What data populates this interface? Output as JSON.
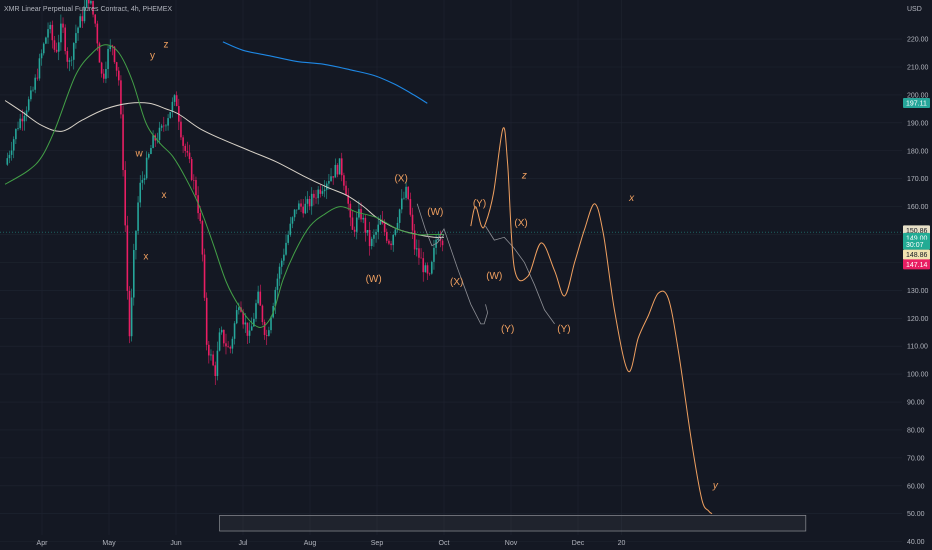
{
  "title": "XMR Linear Perpetual Futures Contract, 4h, PHEMEX",
  "currency": "USD",
  "chart_data": {
    "type": "line",
    "ylim": [
      37,
      234
    ],
    "y_ticks": [
      40,
      50,
      60,
      70,
      80,
      90,
      100,
      110,
      120,
      130,
      140,
      150,
      160,
      170,
      180,
      190,
      200,
      210,
      220
    ],
    "y_tick_labels": [
      "40.00",
      "50.00",
      "60.00",
      "70.00",
      "80.00",
      "90.00",
      "100.00",
      "110.00",
      "120.00",
      "130.00",
      "140.00",
      "150.00",
      "160.00",
      "170.00",
      "180.00",
      "190.00",
      "200.00",
      "210.00",
      "220.00"
    ],
    "x_ticks": [
      {
        "t": 0.0,
        "label": "Apr"
      },
      {
        "t": 1.0,
        "label": "May"
      },
      {
        "t": 2.0,
        "label": "Jun"
      },
      {
        "t": 3.0,
        "label": "Jul"
      },
      {
        "t": 4.0,
        "label": "Aug"
      },
      {
        "t": 5.0,
        "label": "Sep"
      },
      {
        "t": 6.0,
        "label": "Oct"
      },
      {
        "t": 7.0,
        "label": "Nov"
      },
      {
        "t": 8.0,
        "label": "Dec"
      },
      {
        "t": 8.65,
        "label": "20"
      }
    ],
    "price_badges": [
      {
        "label": "197.11",
        "value": 197.11,
        "color": "#26a69a"
      },
      {
        "label": "150.86",
        "value": 151.5,
        "color": "#e8e0c8"
      },
      {
        "label": "149.00",
        "value": 148.8,
        "color": "#22ab94"
      },
      {
        "label": "30:07",
        "value": 146.4,
        "color": "#22ab94"
      },
      {
        "label": "148.86",
        "value": 142.8,
        "color": "#f0e2b0"
      },
      {
        "label": "147.14",
        "value": 139.3,
        "color": "#e91e63"
      }
    ],
    "current_price": 150.86,
    "price_series": [
      [
        -0.55,
        175
      ],
      [
        -0.35,
        190
      ],
      [
        -0.15,
        200
      ],
      [
        0.0,
        215
      ],
      [
        0.1,
        225
      ],
      [
        0.2,
        215
      ],
      [
        0.3,
        225
      ],
      [
        0.4,
        210
      ],
      [
        0.5,
        222
      ],
      [
        0.6,
        228
      ],
      [
        0.7,
        235
      ],
      [
        0.8,
        225
      ],
      [
        0.9,
        205
      ],
      [
        0.98,
        215
      ],
      [
        1.05,
        218
      ],
      [
        1.15,
        205
      ],
      [
        1.22,
        170
      ],
      [
        1.27,
        132
      ],
      [
        1.31,
        112
      ],
      [
        1.37,
        142
      ],
      [
        1.45,
        166
      ],
      [
        1.55,
        174
      ],
      [
        1.65,
        183
      ],
      [
        1.78,
        187
      ],
      [
        1.9,
        194
      ],
      [
        2.0,
        199
      ],
      [
        2.1,
        183
      ],
      [
        2.2,
        175
      ],
      [
        2.3,
        165
      ],
      [
        2.38,
        150
      ],
      [
        2.45,
        112
      ],
      [
        2.52,
        106
      ],
      [
        2.58,
        100
      ],
      [
        2.66,
        115
      ],
      [
        2.8,
        108
      ],
      [
        2.95,
        128
      ],
      [
        3.0,
        120
      ],
      [
        3.1,
        113
      ],
      [
        3.22,
        128
      ],
      [
        3.35,
        113
      ],
      [
        3.5,
        133
      ],
      [
        3.65,
        148
      ],
      [
        3.8,
        160
      ],
      [
        3.95,
        160
      ],
      [
        4.1,
        165
      ],
      [
        4.3,
        171
      ],
      [
        4.45,
        175
      ],
      [
        4.55,
        165
      ],
      [
        4.62,
        150
      ],
      [
        4.75,
        158
      ],
      [
        4.9,
        146
      ],
      [
        5.05,
        154
      ],
      [
        5.2,
        147
      ],
      [
        5.35,
        160
      ],
      [
        5.45,
        166
      ],
      [
        5.55,
        146
      ],
      [
        5.65,
        141
      ],
      [
        5.78,
        133
      ],
      [
        5.9,
        151
      ],
      [
        6.0,
        148
      ]
    ],
    "sma_green": [
      [
        -0.55,
        168
      ],
      [
        -0.2,
        173
      ],
      [
        0.0,
        178
      ],
      [
        0.2,
        188
      ],
      [
        0.5,
        207
      ],
      [
        0.75,
        215
      ],
      [
        0.95,
        218
      ],
      [
        1.15,
        215
      ],
      [
        1.35,
        205
      ],
      [
        1.55,
        190
      ],
      [
        1.75,
        183
      ],
      [
        1.95,
        178
      ],
      [
        2.15,
        170
      ],
      [
        2.35,
        160
      ],
      [
        2.55,
        147
      ],
      [
        2.75,
        133
      ],
      [
        2.95,
        124
      ],
      [
        3.15,
        118
      ],
      [
        3.3,
        117
      ],
      [
        3.45,
        122
      ],
      [
        3.6,
        134
      ],
      [
        3.8,
        145
      ],
      [
        4.0,
        153
      ],
      [
        4.2,
        157
      ],
      [
        4.45,
        160
      ],
      [
        4.7,
        158
      ],
      [
        5.0,
        156
      ],
      [
        5.3,
        152
      ],
      [
        5.6,
        150
      ],
      [
        5.85,
        150
      ],
      [
        6.0,
        150
      ]
    ],
    "sma_white": [
      [
        -0.55,
        198
      ],
      [
        -0.3,
        194
      ],
      [
        0.0,
        189
      ],
      [
        0.3,
        187
      ],
      [
        0.6,
        191
      ],
      [
        0.95,
        195
      ],
      [
        1.3,
        197
      ],
      [
        1.6,
        197
      ],
      [
        1.85,
        195
      ],
      [
        2.05,
        193
      ],
      [
        2.35,
        188
      ],
      [
        2.7,
        184
      ],
      [
        3.1,
        180
      ],
      [
        3.5,
        176
      ],
      [
        3.9,
        171
      ],
      [
        4.25,
        167
      ],
      [
        4.55,
        164
      ],
      [
        4.8,
        160
      ],
      [
        5.0,
        156
      ],
      [
        5.3,
        152
      ],
      [
        5.6,
        150
      ],
      [
        5.85,
        149
      ],
      [
        6.0,
        149
      ]
    ],
    "sma_blue": [
      [
        2.7,
        219
      ],
      [
        3.0,
        216
      ],
      [
        3.4,
        214
      ],
      [
        3.8,
        212
      ],
      [
        4.2,
        211
      ],
      [
        4.6,
        209
      ],
      [
        4.95,
        207
      ],
      [
        5.25,
        204
      ],
      [
        5.55,
        200
      ],
      [
        5.75,
        197
      ]
    ],
    "forecast_orange": [
      [
        6.4,
        153
      ],
      [
        6.47,
        160
      ],
      [
        6.56,
        153
      ],
      [
        6.62,
        154
      ],
      [
        6.74,
        165
      ],
      [
        6.88,
        188
      ],
      [
        6.95,
        175
      ],
      [
        7.05,
        138
      ],
      [
        7.25,
        135
      ],
      [
        7.45,
        147
      ],
      [
        7.65,
        137
      ],
      [
        7.8,
        128
      ],
      [
        7.95,
        140
      ],
      [
        8.1,
        152
      ],
      [
        8.25,
        161
      ],
      [
        8.38,
        150
      ],
      [
        8.55,
        122
      ],
      [
        8.75,
        101
      ],
      [
        8.9,
        113
      ],
      [
        9.05,
        121
      ],
      [
        9.2,
        129
      ],
      [
        9.35,
        127
      ],
      [
        9.5,
        108
      ],
      [
        9.7,
        75
      ],
      [
        9.85,
        55
      ],
      [
        9.95,
        51
      ],
      [
        10.0,
        50
      ]
    ],
    "forecast_gray": [
      [
        5.9,
        148
      ],
      [
        6.0,
        152
      ],
      [
        6.2,
        138
      ],
      [
        6.4,
        125
      ],
      [
        6.55,
        118
      ],
      [
        6.6,
        118
      ],
      [
        6.65,
        122
      ],
      [
        6.62,
        125
      ]
    ],
    "forecast_gray_b": [
      [
        6.62,
        153
      ],
      [
        6.75,
        148
      ],
      [
        6.9,
        149
      ],
      [
        7.05,
        145
      ],
      [
        7.2,
        140
      ],
      [
        7.35,
        132
      ],
      [
        7.5,
        123
      ],
      [
        7.65,
        118
      ]
    ],
    "forecast_gray_c": [
      [
        5.6,
        161
      ],
      [
        5.72,
        152
      ],
      [
        5.82,
        146
      ],
      [
        5.9,
        147
      ],
      [
        6.0,
        150
      ]
    ],
    "wave_labels": [
      {
        "text": "x",
        "t": 1.55,
        "v": 141.0
      },
      {
        "text": "w",
        "t": 1.45,
        "v": 178.0
      },
      {
        "text": "y",
        "t": 1.65,
        "v": 213.0
      },
      {
        "text": "z",
        "t": 1.85,
        "v": 217.0
      },
      {
        "text": "x",
        "t": 1.82,
        "v": 163.0
      },
      {
        "text": "(W)",
        "t": 4.95,
        "v": 133.0
      },
      {
        "text": "(X)",
        "t": 5.36,
        "v": 169.0
      },
      {
        "text": "(W)",
        "t": 5.87,
        "v": 157.0
      },
      {
        "text": "(X)",
        "t": 6.19,
        "v": 132.0
      },
      {
        "text": "(Y)",
        "t": 6.53,
        "v": 160.0
      },
      {
        "text": "(W)",
        "t": 6.75,
        "v": 134.0
      },
      {
        "text": "(X)",
        "t": 7.15,
        "v": 153.0
      },
      {
        "text": "(Y)",
        "t": 6.95,
        "v": 115.0
      },
      {
        "text": "(Y)",
        "t": 7.79,
        "v": 115.0
      }
    ],
    "handwritten": [
      {
        "text": "z",
        "t": 7.2,
        "v": 170.0
      },
      {
        "text": "x",
        "t": 8.8,
        "v": 162.0
      },
      {
        "text": "y",
        "t": 10.05,
        "v": 59.0
      }
    ],
    "zone": {
      "t_start": 2.65,
      "t_end": 11.4,
      "v_top": 49.4,
      "v_bottom": 43.8
    }
  }
}
